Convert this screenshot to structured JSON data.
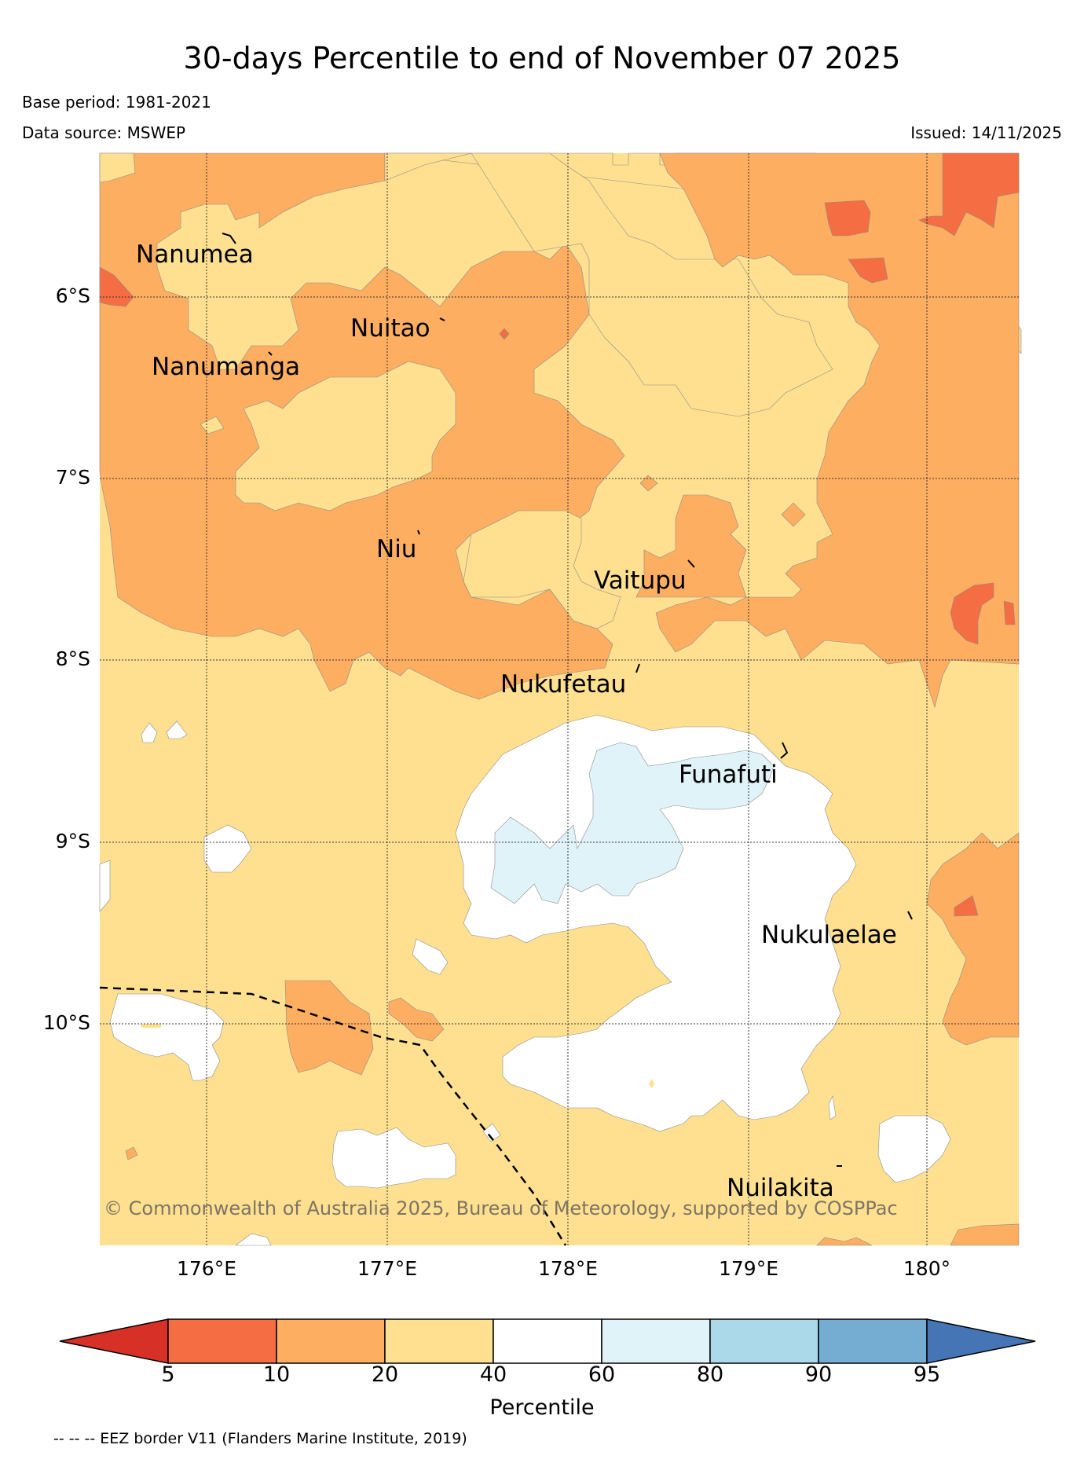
{
  "header": {
    "title": "30-days Percentile to end of November 07 2025",
    "base_period": "Base period: 1981-2021",
    "data_source": "Data source: MSWEP",
    "issued": "Issued: 14/11/2025"
  },
  "map": {
    "lat_labels": [
      "6°S",
      "7°S",
      "8°S",
      "9°S",
      "10°S"
    ],
    "lon_labels": [
      "176°E",
      "177°E",
      "178°E",
      "179°E",
      "180°"
    ],
    "places": [
      {
        "name": "Nanumea"
      },
      {
        "name": "Nuitao"
      },
      {
        "name": "Nanumanga"
      },
      {
        "name": "Niu"
      },
      {
        "name": "Vaitupu"
      },
      {
        "name": "Nukufetau"
      },
      {
        "name": "Funafuti"
      },
      {
        "name": "Nukulaelae"
      },
      {
        "name": "Nuilakita"
      }
    ],
    "copyright": "© Commonwealth of Australia 2025, Bureau of Meteorology, supported by COSPPac",
    "legend_note": "-- -- -- EEZ border V11 (Flanders Marine Institute, 2019)"
  },
  "colorbar": {
    "label": "Percentile",
    "ticks": [
      "5",
      "10",
      "20",
      "40",
      "60",
      "80",
      "90",
      "95"
    ],
    "colors": {
      "below_5": "#d73027",
      "5_10": "#f46d43",
      "10_20": "#fdae61",
      "20_40": "#fee090",
      "40_60": "#ffffff",
      "60_80": "#e0f3f8",
      "80_90": "#abd9e9",
      "90_95": "#74add1",
      "above_95": "#4575b4"
    }
  }
}
